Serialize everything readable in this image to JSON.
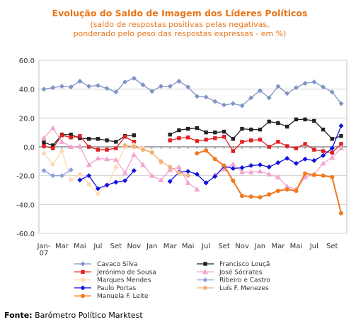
{
  "source": {
    "label": "Fonte:",
    "text": "Barómetro Político Marktest"
  },
  "chart_data": {
    "type": "line",
    "title": "Evolução do Saldo  de Imagem dos Líderes Políticos",
    "subtitle_lines": [
      "(saldo de respostas positivas pelas negativas,",
      "ponderado pelo peso das respostas expressas - em %)"
    ],
    "xlabel": "",
    "ylabel": "",
    "ylim": [
      -60,
      60
    ],
    "yticks": [
      "60.0",
      "40.0",
      "20.0",
      "0.0",
      "-20.0",
      "-40.0",
      "-60.0"
    ],
    "ytick_values": [
      60,
      40,
      20,
      0,
      -20,
      -40,
      -60
    ],
    "x_count": 34,
    "xtick_labels": [
      {
        "i": 0,
        "label": "Jan-"
      },
      {
        "i": 0,
        "label": "07",
        "row": 2
      },
      {
        "i": 2,
        "label": "Mar"
      },
      {
        "i": 4,
        "label": "Mai"
      },
      {
        "i": 6,
        "label": "Jul"
      },
      {
        "i": 8,
        "label": "Set"
      },
      {
        "i": 10,
        "label": "Nov"
      },
      {
        "i": 12,
        "label": "Jan"
      },
      {
        "i": 14,
        "label": "Mar"
      },
      {
        "i": 16,
        "label": "Mai"
      },
      {
        "i": 18,
        "label": "Jul"
      },
      {
        "i": 20,
        "label": "Set"
      },
      {
        "i": 22,
        "label": "Nov"
      },
      {
        "i": 24,
        "label": "Jan"
      },
      {
        "i": 26,
        "label": "Mar"
      },
      {
        "i": 28,
        "label": "Mai"
      },
      {
        "i": 30,
        "label": "Jul"
      },
      {
        "i": 32,
        "label": "Set"
      }
    ],
    "grid": true,
    "legend_position": "bottom",
    "series": [
      {
        "name": "Cavaco Silva",
        "color": "#7f93c7",
        "marker": "diamond",
        "values": [
          40,
          41,
          42,
          41.5,
          45.5,
          42,
          42.5,
          40.5,
          38,
          45,
          47.5,
          43,
          38.5,
          42,
          42,
          45.5,
          41.5,
          35,
          34.5,
          31.5,
          29,
          30,
          28.5,
          34,
          39,
          34,
          42,
          37,
          41,
          44,
          45,
          41.5,
          38,
          30
        ]
      },
      {
        "name": "Francisco Louçã",
        "color": "#222222",
        "marker": "square",
        "values": [
          3,
          1,
          8.5,
          8.5,
          6,
          5.5,
          5.5,
          4.5,
          3.5,
          7.5,
          8,
          null,
          null,
          null,
          8.5,
          11.5,
          12.5,
          13,
          10,
          10,
          10.5,
          5.5,
          12.5,
          12,
          12,
          17.5,
          16.5,
          14,
          19,
          19,
          18,
          12,
          5.5,
          7.5
        ]
      },
      {
        "name": "Jerónimo de Sousa",
        "color": "#e02020",
        "marker": "square",
        "values": [
          0.5,
          -1,
          8,
          6.5,
          7.5,
          0,
          -2,
          -2,
          -1,
          7,
          3.5,
          null,
          null,
          null,
          4.5,
          6,
          6.5,
          4,
          5,
          6,
          7,
          -3,
          3.5,
          4.5,
          5,
          0,
          3.5,
          0.5,
          -1,
          2,
          -2,
          -3,
          -4,
          2
        ]
      },
      {
        "name": "José Sócrates",
        "color": "#f3a3cf",
        "marker": "triangle",
        "values": [
          6,
          13,
          3.5,
          0,
          0.5,
          -12.5,
          -8,
          -8.5,
          -9,
          -18,
          -5.5,
          -12.5,
          -20,
          -23,
          -16,
          -14,
          -25,
          -29.5,
          null,
          -19.5,
          -15.5,
          -12,
          -17.5,
          -17.5,
          -17,
          -19,
          -21,
          -27.5,
          -29.5,
          -21,
          -19,
          -11.5,
          -7.5,
          -1
        ]
      },
      {
        "name": "Marques Mendes",
        "color": "#ffd9b3",
        "marker": "circle",
        "values": [
          -4.5,
          -12,
          -3,
          -23,
          -19,
          -26,
          -32.5,
          -27,
          -14,
          0,
          1.5,
          -1,
          -3.5,
          -11,
          null,
          null,
          null,
          null,
          null,
          null,
          null,
          null,
          null,
          null,
          null,
          null,
          null,
          null,
          null,
          null,
          null,
          null,
          null,
          null
        ]
      },
      {
        "name": "Ribeiro e Castro",
        "color": "#8c9fd6",
        "marker": "diamond",
        "values": [
          -16.5,
          -20,
          -20,
          -16,
          null,
          null,
          null,
          null,
          null,
          null,
          null,
          null,
          null,
          null,
          null,
          null,
          null,
          null,
          null,
          null,
          null,
          null,
          null,
          null,
          null,
          null,
          null,
          null,
          null,
          null,
          null,
          null,
          null,
          null
        ]
      },
      {
        "name": "Paulo Portas",
        "color": "#1010e0",
        "marker": "diamond",
        "values": [
          null,
          null,
          null,
          null,
          -23,
          -20,
          -29,
          -26.5,
          -24.5,
          -23.5,
          -16.5,
          null,
          null,
          null,
          -24,
          -17.5,
          -17,
          -19,
          -25,
          -20.5,
          -13.5,
          -15,
          -14.5,
          -13,
          -12.5,
          -14,
          -11,
          -8,
          -11.5,
          -8.5,
          -9.5,
          -6,
          -1,
          14.5
        ]
      },
      {
        "name": "Luís F. Menezes",
        "color": "#f2b27a",
        "marker": "circle",
        "values": [
          null,
          null,
          null,
          null,
          null,
          null,
          null,
          null,
          null,
          1,
          0,
          -2,
          -4,
          -10,
          -14,
          -18,
          -20,
          null,
          null,
          null,
          null,
          null,
          null,
          null,
          null,
          null,
          null,
          null,
          null,
          null,
          null,
          null,
          null,
          null
        ]
      },
      {
        "name": "Manuela F. Leite",
        "color": "#f07820",
        "marker": "circle",
        "values": [
          null,
          null,
          null,
          null,
          null,
          null,
          null,
          null,
          null,
          null,
          null,
          null,
          null,
          null,
          null,
          null,
          null,
          -4.5,
          -2.5,
          -8.5,
          -13,
          -23.5,
          -34,
          -34.5,
          -35,
          -33,
          -30.5,
          -29.5,
          -30.5,
          -18.5,
          -19.5,
          -20,
          -21,
          -46
        ]
      }
    ]
  }
}
